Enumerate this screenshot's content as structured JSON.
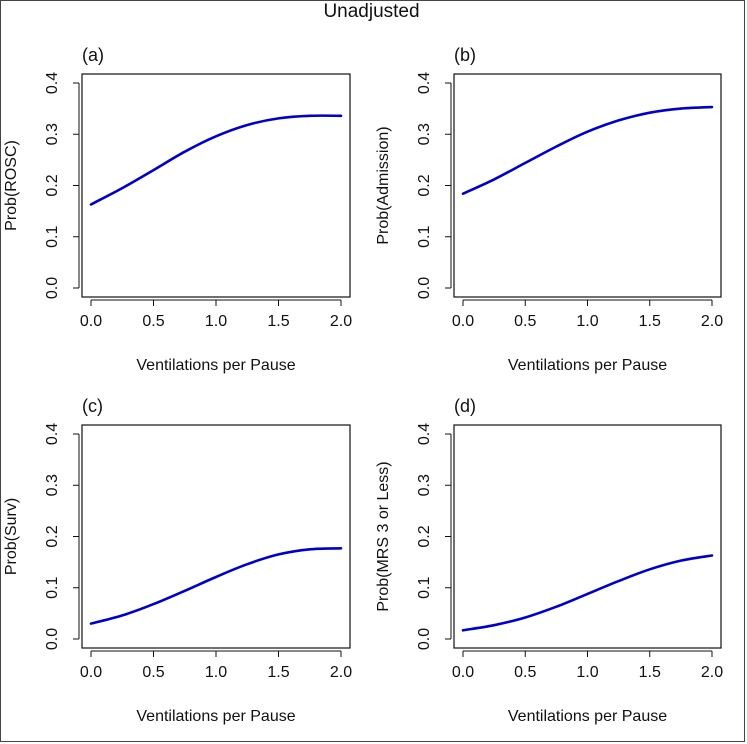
{
  "figure": {
    "title": "Unadjusted"
  },
  "style": {
    "line_color": "#0000cc",
    "axis_color": "#111111",
    "background": "#ffffff"
  },
  "chart_data": [
    {
      "type": "line",
      "panel_label": "(a)",
      "title": "",
      "xlabel": "Ventilations per Pause",
      "ylabel": "Prob(ROSC)",
      "xlim": [
        0,
        2
      ],
      "ylim": [
        0,
        0.4
      ],
      "xticks": [
        "0.0",
        "0.5",
        "1.0",
        "1.5",
        "2.0"
      ],
      "yticks": [
        "0.0",
        "0.1",
        "0.2",
        "0.3",
        "0.4"
      ],
      "grid": false,
      "series": [
        {
          "x": [
            0.0,
            0.25,
            0.5,
            0.75,
            1.0,
            1.25,
            1.5,
            1.75,
            2.0
          ],
          "y": [
            0.163,
            0.195,
            0.23,
            0.266,
            0.296,
            0.318,
            0.331,
            0.336,
            0.336
          ]
        }
      ]
    },
    {
      "type": "line",
      "panel_label": "(b)",
      "title": "",
      "xlabel": "Ventilations per Pause",
      "ylabel": "Prob(Admission)",
      "xlim": [
        0,
        2
      ],
      "ylim": [
        0,
        0.4
      ],
      "xticks": [
        "0.0",
        "0.5",
        "1.0",
        "1.5",
        "2.0"
      ],
      "yticks": [
        "0.0",
        "0.1",
        "0.2",
        "0.3",
        "0.4"
      ],
      "grid": false,
      "series": [
        {
          "x": [
            0.0,
            0.25,
            0.5,
            0.75,
            1.0,
            1.25,
            1.5,
            1.75,
            2.0
          ],
          "y": [
            0.184,
            0.212,
            0.244,
            0.276,
            0.305,
            0.327,
            0.342,
            0.35,
            0.353
          ]
        }
      ]
    },
    {
      "type": "line",
      "panel_label": "(c)",
      "title": "",
      "xlabel": "Ventilations per Pause",
      "ylabel": "Prob(Surv)",
      "xlim": [
        0,
        2
      ],
      "ylim": [
        0,
        0.4
      ],
      "xticks": [
        "0.0",
        "0.5",
        "1.0",
        "1.5",
        "2.0"
      ],
      "yticks": [
        "0.0",
        "0.1",
        "0.2",
        "0.3",
        "0.4"
      ],
      "grid": false,
      "series": [
        {
          "x": [
            0.0,
            0.25,
            0.5,
            0.75,
            1.0,
            1.25,
            1.5,
            1.75,
            2.0
          ],
          "y": [
            0.03,
            0.046,
            0.068,
            0.094,
            0.121,
            0.146,
            0.165,
            0.175,
            0.177
          ]
        }
      ]
    },
    {
      "type": "line",
      "panel_label": "(d)",
      "title": "",
      "xlabel": "Ventilations per Pause",
      "ylabel": "Prob(MRS 3 or Less)",
      "xlim": [
        0,
        2
      ],
      "ylim": [
        0,
        0.4
      ],
      "xticks": [
        "0.0",
        "0.5",
        "1.0",
        "1.5",
        "2.0"
      ],
      "yticks": [
        "0.0",
        "0.1",
        "0.2",
        "0.3",
        "0.4"
      ],
      "grid": false,
      "series": [
        {
          "x": [
            0.0,
            0.25,
            0.5,
            0.75,
            1.0,
            1.25,
            1.5,
            1.75,
            2.0
          ],
          "y": [
            0.017,
            0.027,
            0.042,
            0.063,
            0.088,
            0.113,
            0.136,
            0.153,
            0.163
          ]
        }
      ]
    }
  ]
}
